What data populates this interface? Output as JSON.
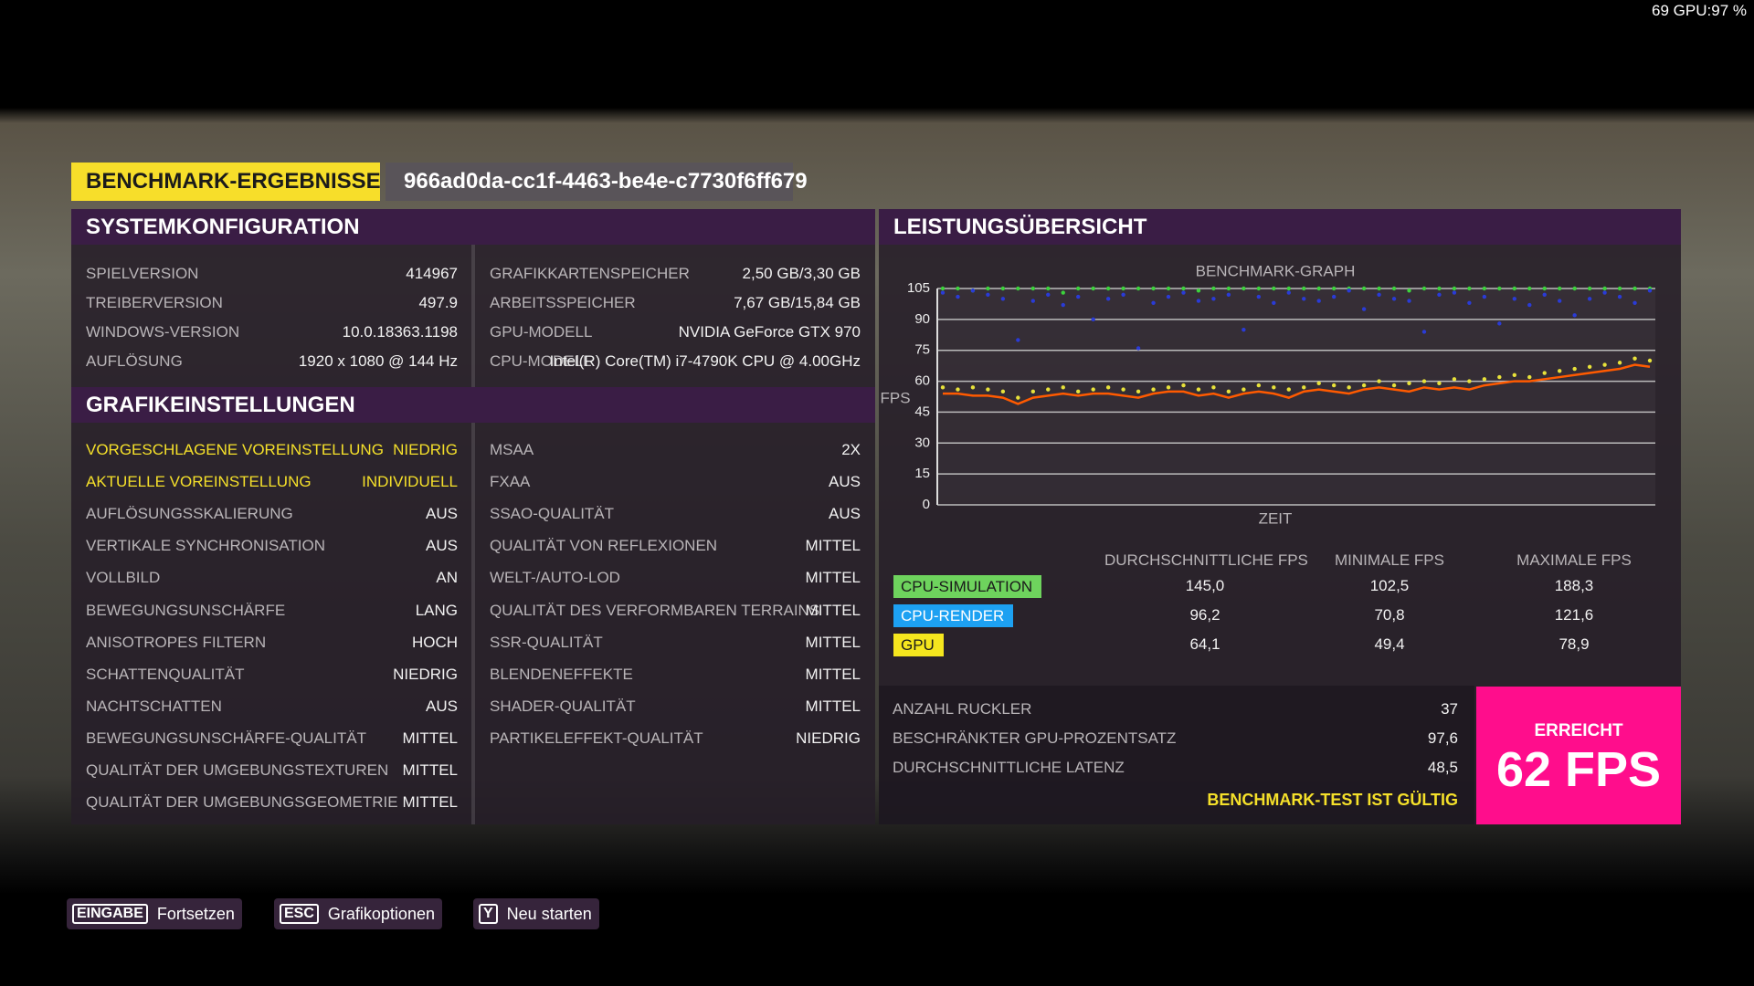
{
  "overlay": "69 GPU:97 %",
  "header": {
    "title": "BENCHMARK-ERGEBNISSE",
    "id": "966ad0da-cc1f-4463-be4e-c7730f6ff679"
  },
  "system": {
    "title": "SYSTEMKONFIGURATION",
    "left": [
      [
        "SPIELVERSION",
        "414967"
      ],
      [
        "TREIBERVERSION",
        "497.9"
      ],
      [
        "WINDOWS-VERSION",
        "10.0.18363.1198"
      ],
      [
        "AUFLÖSUNG",
        "1920 x 1080 @ 144 Hz"
      ]
    ],
    "right": [
      [
        "GRAFIKKARTENSPEICHER",
        "2,50 GB/3,30 GB"
      ],
      [
        "ARBEITSSPEICHER",
        "7,67 GB/15,84 GB"
      ],
      [
        "GPU-MODELL",
        "NVIDIA GeForce GTX 970"
      ],
      [
        "CPU-MODELL",
        "Intel(R) Core(TM) i7-4790K CPU @ 4.00GHz"
      ]
    ]
  },
  "graphics": {
    "title": "GRAFIKEINSTELLUNGEN",
    "left": [
      [
        "VORGESCHLAGENE VOREINSTELLUNG",
        "NIEDRIG"
      ],
      [
        "AKTUELLE VOREINSTELLUNG",
        "INDIVIDUELL"
      ],
      [
        "AUFLÖSUNGSSKALIERUNG",
        "AUS"
      ],
      [
        "VERTIKALE SYNCHRONISATION",
        "AUS"
      ],
      [
        "VOLLBILD",
        "AN"
      ],
      [
        "BEWEGUNGSUNSCHÄRFE",
        "LANG"
      ],
      [
        "ANISOTROPES FILTERN",
        "HOCH"
      ],
      [
        "SCHATTENQUALITÄT",
        "NIEDRIG"
      ],
      [
        "NACHTSCHATTEN",
        "AUS"
      ],
      [
        "BEWEGUNGSUNSCHÄRFE-QUALITÄT",
        "MITTEL"
      ],
      [
        "QUALITÄT DER UMGEBUNGSTEXTUREN",
        "MITTEL"
      ],
      [
        "QUALITÄT DER UMGEBUNGSGEOMETRIE",
        "MITTEL"
      ]
    ],
    "right": [
      [
        "MSAA",
        "2X"
      ],
      [
        "FXAA",
        "AUS"
      ],
      [
        "SSAO-QUALITÄT",
        "AUS"
      ],
      [
        "QUALITÄT VON REFLEXIONEN",
        "MITTEL"
      ],
      [
        "WELT-/AUTO-LOD",
        "MITTEL"
      ],
      [
        "QUALITÄT DES VERFORMBAREN TERRAINS",
        "MITTEL"
      ],
      [
        "SSR-QUALITÄT",
        "MITTEL"
      ],
      [
        "BLENDENEFFEKTE",
        "MITTEL"
      ],
      [
        "SHADER-QUALITÄT",
        "MITTEL"
      ],
      [
        "PARTIKELEFFEKT-QUALITÄT",
        "NIEDRIG"
      ]
    ]
  },
  "performance": {
    "title": "LEISTUNGSÜBERSICHT",
    "stats": {
      "headers": [
        "DURCHSCHNITTLICHE FPS",
        "MINIMALE FPS",
        "MAXIMALE FPS"
      ],
      "rows": [
        [
          "145,0",
          "102,5",
          "188,3"
        ],
        [
          "96,2",
          "70,8",
          "121,6"
        ],
        [
          "64,1",
          "49,4",
          "78,9"
        ]
      ]
    },
    "summary": [
      [
        "ANZAHL RUCKLER",
        "37"
      ],
      [
        "BESCHRÄNKTER GPU-PROZENTSATZ",
        "97,6"
      ],
      [
        "DURCHSCHNITTLICHE LATENZ",
        "48,5"
      ]
    ],
    "status": "BENCHMARK-TEST IST GÜLTIG",
    "result": {
      "label": "ERREICHT",
      "value": "62 FPS"
    }
  },
  "chart_data": {
    "type": "scatter",
    "title": "BENCHMARK-GRAPH",
    "xlabel": "ZEIT",
    "ylabel": "FPS",
    "ylim": [
      0,
      105
    ],
    "yticks": [
      0,
      15,
      30,
      45,
      60,
      75,
      90,
      105
    ],
    "grid": true,
    "series": [
      {
        "name": "CPU-SIMULATION",
        "color": "#3cd23c",
        "values": [
          105,
          105,
          104,
          105,
          105,
          105,
          105,
          105,
          103,
          105,
          105,
          105,
          105,
          105,
          105,
          105,
          105,
          104,
          105,
          105,
          105,
          105,
          105,
          105,
          105,
          105,
          105,
          105,
          105,
          105,
          105,
          104,
          105,
          105,
          105,
          105,
          105,
          105,
          105,
          105,
          105,
          105,
          105,
          105,
          105,
          105,
          105,
          105
        ]
      },
      {
        "name": "CPU-RENDER",
        "color": "#2a3bd6",
        "values": [
          103,
          101,
          104,
          102,
          100,
          80,
          99,
          102,
          97,
          101,
          90,
          100,
          102,
          76,
          98,
          101,
          103,
          99,
          100,
          102,
          85,
          101,
          98,
          103,
          100,
          99,
          101,
          104,
          95,
          102,
          100,
          99,
          84,
          102,
          103,
          98,
          101,
          88,
          100,
          97,
          102,
          99,
          92,
          100,
          103,
          101,
          98,
          104
        ]
      },
      {
        "name": "GPU",
        "color": "#e8e23a",
        "values": [
          57,
          56,
          57,
          56,
          55,
          52,
          55,
          56,
          57,
          55,
          56,
          57,
          56,
          55,
          56,
          57,
          58,
          56,
          57,
          55,
          56,
          58,
          57,
          56,
          57,
          59,
          58,
          57,
          58,
          60,
          58,
          59,
          60,
          59,
          61,
          60,
          61,
          62,
          63,
          62,
          64,
          65,
          66,
          67,
          68,
          69,
          71,
          70
        ]
      },
      {
        "color": "#ff5a00",
        "style": "line",
        "values": [
          54,
          54,
          53,
          53,
          52,
          49,
          52,
          53,
          54,
          53,
          54,
          54,
          53,
          52,
          54,
          55,
          55,
          53,
          54,
          52,
          54,
          55,
          54,
          52,
          55,
          56,
          55,
          54,
          56,
          57,
          56,
          55,
          57,
          56,
          57,
          56,
          58,
          59,
          60,
          60,
          61,
          62,
          63,
          64,
          65,
          66,
          68,
          67
        ]
      }
    ]
  },
  "buttons": [
    {
      "key": "EINGABE",
      "label": "Fortsetzen"
    },
    {
      "key": "ESC",
      "label": "Grafikoptionen"
    },
    {
      "key": "Y",
      "label": "Neu starten"
    }
  ]
}
